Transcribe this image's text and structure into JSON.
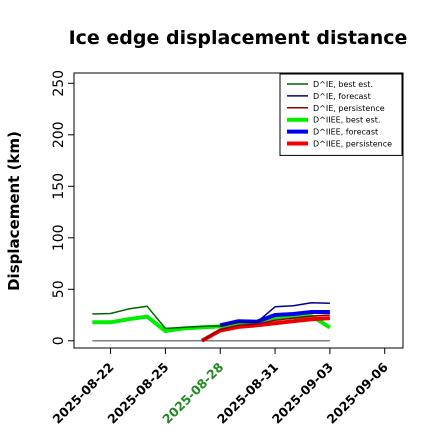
{
  "chart_data": {
    "type": "line",
    "title": "Ice edge displacement distance",
    "xlabel": "",
    "ylabel": "Displacement (km)",
    "xlim": [
      "2025-08-20",
      "2025-09-07"
    ],
    "ylim": [
      -7,
      260
    ],
    "yticks": [
      0,
      50,
      100,
      150,
      200,
      250
    ],
    "xticks": [
      "2025-08-22",
      "2025-08-25",
      "2025-08-28",
      "2025-08-31",
      "2025-09-03",
      "2025-09-06"
    ],
    "highlight_xtick": "2025-08-28",
    "highlight_color": "#228B22",
    "grid": false,
    "legend_position": "top-right",
    "series": [
      {
        "name": "D^IE, best est.",
        "color": "#006400",
        "width": 1.5,
        "x": [
          "2025-08-21",
          "2025-08-22",
          "2025-08-23",
          "2025-08-24",
          "2025-08-25",
          "2025-08-26",
          "2025-08-27",
          "2025-08-28"
        ],
        "y": [
          26,
          26.5,
          31,
          33.5,
          12,
          13,
          14,
          14.5
        ]
      },
      {
        "name": "D^IE, forecast",
        "color": "#00008B",
        "width": 1.5,
        "x": [
          "2025-08-28",
          "2025-08-29",
          "2025-08-30",
          "2025-08-31",
          "2025-09-01",
          "2025-09-02",
          "2025-09-03"
        ],
        "y": [
          14.5,
          18,
          18,
          33,
          34,
          37,
          36.5
        ]
      },
      {
        "name": "D^IE, persistence",
        "color": "#8B0000",
        "width": 1.5,
        "x": [
          "2025-08-27",
          "2025-08-28",
          "2025-08-29",
          "2025-08-30",
          "2025-08-31",
          "2025-09-01",
          "2025-09-02",
          "2025-09-03"
        ],
        "y": [
          0,
          11,
          15,
          16,
          20,
          22,
          24,
          25
        ]
      },
      {
        "name": "D^IIEE, best est.",
        "color": "#00EE00",
        "width": 4,
        "x": [
          "2025-08-21",
          "2025-08-22",
          "2025-08-23",
          "2025-08-24",
          "2025-08-25",
          "2025-08-26",
          "2025-08-27",
          "2025-08-28",
          "2025-08-29",
          "2025-08-30",
          "2025-08-31",
          "2025-09-01",
          "2025-09-02",
          "2025-09-03"
        ],
        "y": [
          18,
          18,
          21,
          23.5,
          9.5,
          12,
          13,
          14,
          15,
          16,
          22,
          23,
          24,
          13
        ]
      },
      {
        "name": "D^IIEE, forecast",
        "color": "#0000EE",
        "width": 4,
        "x": [
          "2025-08-28",
          "2025-08-29",
          "2025-08-30",
          "2025-08-31",
          "2025-09-01",
          "2025-09-02",
          "2025-09-03"
        ],
        "y": [
          15,
          19,
          18.5,
          25,
          26,
          28,
          28
        ]
      },
      {
        "name": "D^IIEE, persistence",
        "color": "#EE0000",
        "width": 4,
        "x": [
          "2025-08-27",
          "2025-08-28",
          "2025-08-29",
          "2025-08-30",
          "2025-08-31",
          "2025-09-01",
          "2025-09-02",
          "2025-09-03"
        ],
        "y": [
          0,
          10,
          13.5,
          15,
          17,
          19,
          21,
          22
        ]
      },
      {
        "name": "",
        "color": "#555555",
        "width": 1.2,
        "x": [
          "2025-08-21",
          "2025-09-03"
        ],
        "y": [
          0,
          0
        ]
      }
    ],
    "legend": [
      {
        "label": "D^IE, best est.",
        "color": "#006400",
        "width": 1.5
      },
      {
        "label": "D^IE, forecast",
        "color": "#00008B",
        "width": 1.5
      },
      {
        "label": "D^IE, persistence",
        "color": "#8B0000",
        "width": 1.5
      },
      {
        "label": "D^IIEE, best est.",
        "color": "#00EE00",
        "width": 4
      },
      {
        "label": "D^IIEE, forecast",
        "color": "#0000EE",
        "width": 4
      },
      {
        "label": "D^IIEE, persistence",
        "color": "#EE0000",
        "width": 4
      }
    ]
  }
}
